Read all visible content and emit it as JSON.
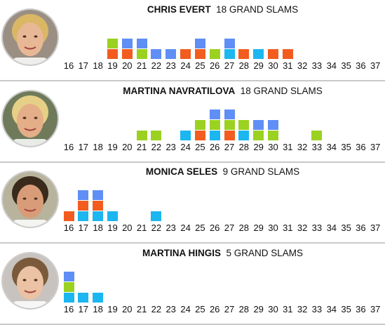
{
  "colors": {
    "blue": "#5f8ef5",
    "green": "#9bd121",
    "orange": "#f25c1f",
    "cyan": "#1cb6f0",
    "divider": "#c9c9c9"
  },
  "chart_data": [
    {
      "type": "bar",
      "player": "CHRIS EVERT",
      "total_label": "18 GRAND SLAMS",
      "avatar_icon": "player-portrait-chris-evert",
      "x": [
        16,
        17,
        18,
        19,
        20,
        21,
        22,
        23,
        24,
        25,
        26,
        27,
        28,
        29,
        30,
        31,
        32,
        33,
        34,
        35,
        36,
        37
      ],
      "titles_by_age": {
        "19": [
          "orange",
          "green"
        ],
        "20": [
          "orange",
          "blue"
        ],
        "21": [
          "green",
          "blue"
        ],
        "22": [
          "blue"
        ],
        "23": [
          "blue"
        ],
        "24": [
          "orange"
        ],
        "25": [
          "orange",
          "blue"
        ],
        "26": [
          "green"
        ],
        "27": [
          "cyan",
          "blue"
        ],
        "28": [
          "orange"
        ],
        "29": [
          "cyan"
        ],
        "30": [
          "orange"
        ],
        "31": [
          "orange"
        ]
      }
    },
    {
      "type": "bar",
      "player": "MARTINA NAVRATILOVA",
      "total_label": "18 GRAND SLAMS",
      "avatar_icon": "player-portrait-martina-navratilova",
      "x": [
        16,
        17,
        18,
        19,
        20,
        21,
        22,
        23,
        24,
        25,
        26,
        27,
        28,
        29,
        30,
        31,
        32,
        33,
        34,
        35,
        36,
        37
      ],
      "titles_by_age": {
        "21": [
          "green"
        ],
        "22": [
          "green"
        ],
        "24": [
          "cyan"
        ],
        "25": [
          "orange",
          "green"
        ],
        "26": [
          "cyan",
          "green",
          "blue"
        ],
        "27": [
          "orange",
          "green",
          "blue"
        ],
        "28": [
          "cyan",
          "green"
        ],
        "29": [
          "green",
          "blue"
        ],
        "30": [
          "green",
          "blue"
        ],
        "33": [
          "green"
        ]
      }
    },
    {
      "type": "bar",
      "player": "MONICA SELES",
      "total_label": "9 GRAND SLAMS",
      "avatar_icon": "player-portrait-monica-seles",
      "x": [
        16,
        17,
        18,
        19,
        20,
        21,
        22,
        23,
        24,
        25,
        26,
        27,
        28,
        29,
        30,
        31,
        32,
        33,
        34,
        35,
        36,
        37
      ],
      "titles_by_age": {
        "16": [
          "orange"
        ],
        "17": [
          "cyan",
          "orange",
          "blue"
        ],
        "18": [
          "cyan",
          "orange",
          "blue"
        ],
        "19": [
          "cyan"
        ],
        "22": [
          "cyan"
        ]
      }
    },
    {
      "type": "bar",
      "player": "MARTINA HINGIS",
      "total_label": "5 GRAND SLAMS",
      "avatar_icon": "player-portrait-martina-hingis",
      "x": [
        16,
        17,
        18,
        19,
        20,
        21,
        22,
        23,
        24,
        25,
        26,
        27,
        28,
        29,
        30,
        31,
        32,
        33,
        34,
        35,
        36,
        37
      ],
      "titles_by_age": {
        "16": [
          "cyan",
          "green",
          "blue"
        ],
        "17": [
          "cyan"
        ],
        "18": [
          "cyan"
        ]
      }
    }
  ]
}
